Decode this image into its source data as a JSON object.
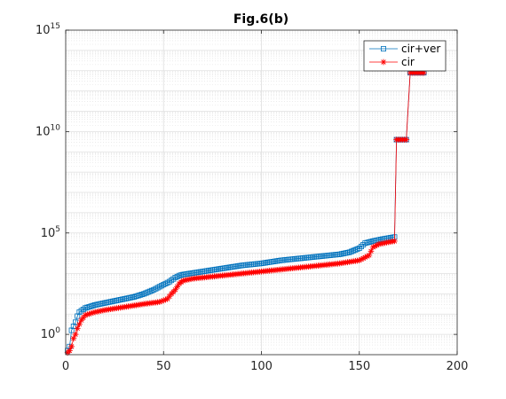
{
  "chart_data": {
    "type": "line",
    "title": "Fig.6(b)",
    "xlabel": "",
    "ylabel": "",
    "y_scale": "log",
    "xlim": [
      0,
      200
    ],
    "ylim_log10": [
      -1,
      15
    ],
    "x_ticks": [
      0,
      50,
      100,
      150,
      200
    ],
    "x_tick_labels": [
      "0",
      "50",
      "100",
      "150",
      "200"
    ],
    "y_ticks_log10": [
      0,
      5,
      10,
      15
    ],
    "y_tick_labels": [
      {
        "base": "10",
        "exp": "0"
      },
      {
        "base": "10",
        "exp": "5"
      },
      {
        "base": "10",
        "exp": "10"
      },
      {
        "base": "10",
        "exp": "15"
      }
    ],
    "grid": true,
    "legend_position": "top-right",
    "series": [
      {
        "name": "cir+ver",
        "color": "#0072BD",
        "marker": "square",
        "x_start": 1,
        "x_step": 1,
        "log10_anchors": [
          [
            1,
            -0.8
          ],
          [
            2,
            -0.6
          ],
          [
            3,
            0.2
          ],
          [
            4,
            0.4
          ],
          [
            5,
            0.6
          ],
          [
            6,
            0.9
          ],
          [
            7,
            1.1
          ],
          [
            10,
            1.3
          ],
          [
            15,
            1.45
          ],
          [
            20,
            1.55
          ],
          [
            25,
            1.65
          ],
          [
            30,
            1.75
          ],
          [
            35,
            1.85
          ],
          [
            40,
            2.0
          ],
          [
            45,
            2.2
          ],
          [
            50,
            2.45
          ],
          [
            53,
            2.6
          ],
          [
            56,
            2.8
          ],
          [
            58,
            2.9
          ],
          [
            60,
            2.95
          ],
          [
            70,
            3.1
          ],
          [
            80,
            3.25
          ],
          [
            90,
            3.4
          ],
          [
            100,
            3.5
          ],
          [
            110,
            3.65
          ],
          [
            120,
            3.75
          ],
          [
            130,
            3.85
          ],
          [
            140,
            3.95
          ],
          [
            145,
            4.05
          ],
          [
            150,
            4.25
          ],
          [
            153,
            4.5
          ],
          [
            157,
            4.6
          ],
          [
            162,
            4.7
          ],
          [
            168,
            4.8
          ]
        ],
        "step_groups": [
          {
            "x_start": 169,
            "x_end": 174,
            "log10": 9.6
          },
          {
            "x_start": 176,
            "x_end": 183,
            "log10": 12.9
          }
        ]
      },
      {
        "name": "cir",
        "color": "#FF0000",
        "marker": "asterisk",
        "x_start": 1,
        "x_step": 1,
        "log10_anchors": [
          [
            1,
            -0.9
          ],
          [
            2,
            -0.8
          ],
          [
            3,
            -0.6
          ],
          [
            4,
            -0.2
          ],
          [
            5,
            0.0
          ],
          [
            6,
            0.3
          ],
          [
            7,
            0.5
          ],
          [
            8,
            0.7
          ],
          [
            10,
            0.95
          ],
          [
            15,
            1.1
          ],
          [
            20,
            1.2
          ],
          [
            30,
            1.35
          ],
          [
            40,
            1.5
          ],
          [
            48,
            1.6
          ],
          [
            52,
            1.75
          ],
          [
            54,
            2.0
          ],
          [
            56,
            2.2
          ],
          [
            58,
            2.5
          ],
          [
            60,
            2.65
          ],
          [
            65,
            2.75
          ],
          [
            80,
            2.9
          ],
          [
            100,
            3.1
          ],
          [
            120,
            3.3
          ],
          [
            140,
            3.5
          ],
          [
            150,
            3.65
          ],
          [
            155,
            3.9
          ],
          [
            157,
            4.3
          ],
          [
            160,
            4.45
          ],
          [
            165,
            4.55
          ],
          [
            168,
            4.6
          ]
        ],
        "step_groups": [
          {
            "x_start": 169,
            "x_end": 174,
            "log10": 9.6
          },
          {
            "x_start": 176,
            "x_end": 183,
            "log10": 12.9
          }
        ]
      }
    ]
  },
  "colors": {
    "axes": "#262626",
    "grid": "#DFDFDF",
    "background": "#FFFFFF"
  }
}
